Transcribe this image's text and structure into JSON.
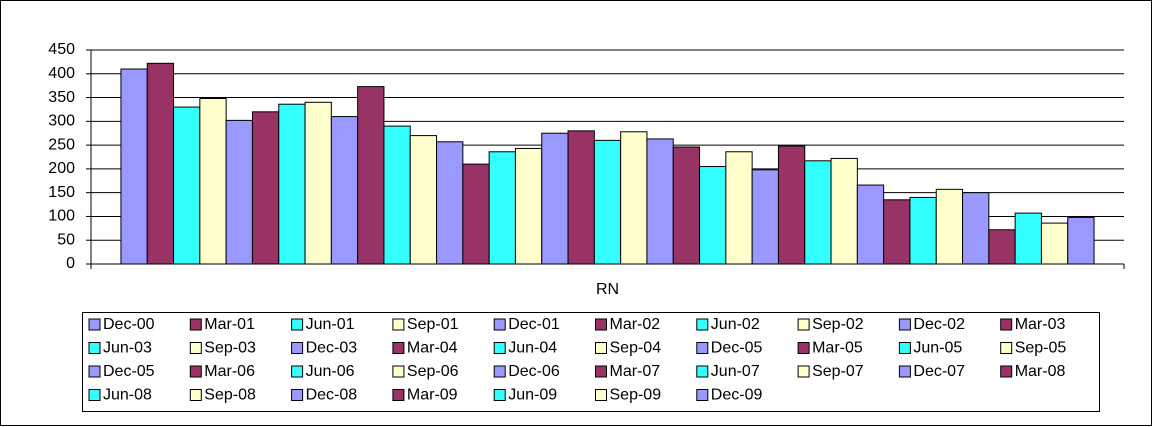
{
  "chart_data": {
    "type": "bar",
    "categories": [
      "RN"
    ],
    "series": [
      {
        "name": "Dec-00",
        "color": "#9999ff",
        "values": [
          410
        ]
      },
      {
        "name": "Mar-01",
        "color": "#993366",
        "values": [
          422
        ]
      },
      {
        "name": "Jun-01",
        "color": "#33ffff",
        "values": [
          330
        ]
      },
      {
        "name": "Sep-01",
        "color": "#ffffcc",
        "values": [
          348
        ]
      },
      {
        "name": "Dec-01",
        "color": "#9999ff",
        "values": [
          302
        ]
      },
      {
        "name": "Mar-02",
        "color": "#993366",
        "values": [
          320
        ]
      },
      {
        "name": "Jun-02",
        "color": "#33ffff",
        "values": [
          336
        ]
      },
      {
        "name": "Sep-02",
        "color": "#ffffcc",
        "values": [
          340
        ]
      },
      {
        "name": "Dec-02",
        "color": "#9999ff",
        "values": [
          310
        ]
      },
      {
        "name": "Mar-03",
        "color": "#993366",
        "values": [
          373
        ]
      },
      {
        "name": "Jun-03",
        "color": "#33ffff",
        "values": [
          290
        ]
      },
      {
        "name": "Sep-03",
        "color": "#ffffcc",
        "values": [
          270
        ]
      },
      {
        "name": "Dec-03",
        "color": "#9999ff",
        "values": [
          257
        ]
      },
      {
        "name": "Mar-04",
        "color": "#993366",
        "values": [
          210
        ]
      },
      {
        "name": "Jun-04",
        "color": "#33ffff",
        "values": [
          236
        ]
      },
      {
        "name": "Sep-04",
        "color": "#ffffcc",
        "values": [
          243
        ]
      },
      {
        "name": "Dec-05",
        "color": "#9999ff",
        "values": [
          275
        ]
      },
      {
        "name": "Mar-05",
        "color": "#993366",
        "values": [
          280
        ]
      },
      {
        "name": "Jun-05",
        "color": "#33ffff",
        "values": [
          260
        ]
      },
      {
        "name": "Sep-05",
        "color": "#ffffcc",
        "values": [
          278
        ]
      },
      {
        "name": "Dec-05",
        "color": "#9999ff",
        "values": [
          263
        ]
      },
      {
        "name": "Mar-06",
        "color": "#993366",
        "values": [
          246
        ]
      },
      {
        "name": "Jun-06",
        "color": "#33ffff",
        "values": [
          205
        ]
      },
      {
        "name": "Sep-06",
        "color": "#ffffcc",
        "values": [
          236
        ]
      },
      {
        "name": "Dec-06",
        "color": "#9999ff",
        "values": [
          198
        ]
      },
      {
        "name": "Mar-07",
        "color": "#993366",
        "values": [
          248
        ]
      },
      {
        "name": "Jun-07",
        "color": "#33ffff",
        "values": [
          217
        ]
      },
      {
        "name": "Sep-07",
        "color": "#ffffcc",
        "values": [
          222
        ]
      },
      {
        "name": "Dec-07",
        "color": "#9999ff",
        "values": [
          166
        ]
      },
      {
        "name": "Mar-08",
        "color": "#993366",
        "values": [
          135
        ]
      },
      {
        "name": "Jun-08",
        "color": "#33ffff",
        "values": [
          140
        ]
      },
      {
        "name": "Sep-08",
        "color": "#ffffcc",
        "values": [
          157
        ]
      },
      {
        "name": "Dec-08",
        "color": "#9999ff",
        "values": [
          150
        ]
      },
      {
        "name": "Mar-09",
        "color": "#993366",
        "values": [
          72
        ]
      },
      {
        "name": "Jun-09",
        "color": "#33ffff",
        "values": [
          107
        ]
      },
      {
        "name": "Sep-09",
        "color": "#ffffcc",
        "values": [
          86
        ]
      },
      {
        "name": "Dec-09",
        "color": "#9999ff",
        "values": [
          98
        ]
      }
    ],
    "ylim": [
      0,
      450
    ],
    "yticks": [
      0,
      50,
      100,
      150,
      200,
      250,
      300,
      350,
      400,
      450
    ],
    "grid": true,
    "legend": "bottom"
  }
}
